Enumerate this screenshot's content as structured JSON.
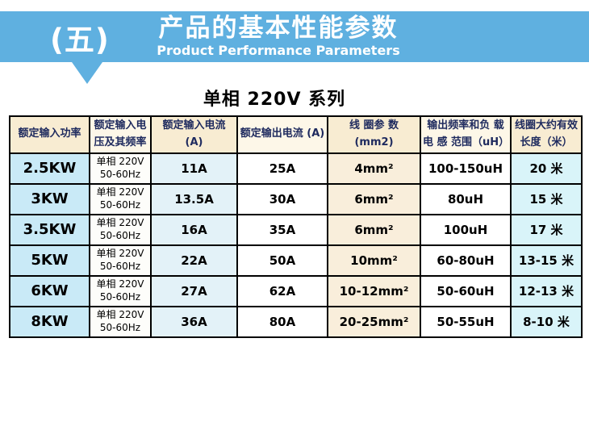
{
  "banner": {
    "section_number": "(五)",
    "title": "产品的基本性能参数",
    "subtitle": "Product Performance Parameters"
  },
  "section": {
    "table_title": "单相 220V 系列"
  },
  "table": {
    "headers": [
      "额定输入功率",
      "额定输入电压及其频率",
      "额定输入电流 (A)",
      "额定输出电流 (A)",
      "线 圈参 数 (mm2)",
      "输出频率和负 载电 感 范围（uH）",
      "线圈大约有效长度（米）"
    ],
    "rows": [
      {
        "power": "2.5KW",
        "voltage": "单相 220V 50-60Hz",
        "input_current": "11A",
        "output_current": "25A",
        "coil_size": "4mm²",
        "inductance": "100-150uH",
        "coil_length": "20 米"
      },
      {
        "power": "3KW",
        "voltage": "单相 220V 50-60Hz",
        "input_current": "13.5A",
        "output_current": "30A",
        "coil_size": "6mm²",
        "inductance": "80uH",
        "coil_length": "15 米"
      },
      {
        "power": "3.5KW",
        "voltage": "单相 220V 50-60Hz",
        "input_current": "16A",
        "output_current": "35A",
        "coil_size": "6mm²",
        "inductance": "100uH",
        "coil_length": "17 米"
      },
      {
        "power": "5KW",
        "voltage": "单相 220V 50-60Hz",
        "input_current": "22A",
        "output_current": "50A",
        "coil_size": "10mm²",
        "inductance": "60-80uH",
        "coil_length": "13-15 米"
      },
      {
        "power": "6KW",
        "voltage": "单相 220V 50-60Hz",
        "input_current": "27A",
        "output_current": "62A",
        "coil_size": "10-12mm²",
        "inductance": "50-60uH",
        "coil_length": "12-13 米"
      },
      {
        "power": "8KW",
        "voltage": "单相 220V 50-60Hz",
        "input_current": "36A",
        "output_current": "80A",
        "coil_size": "20-25mm²",
        "inductance": "50-55uH",
        "coil_length": "8-10 米"
      }
    ],
    "colors": {
      "banner_bg": "#5fb0e0",
      "header_bg_odd": "#f8ecd2",
      "header_bg_even": "#fdf7e8",
      "header_text": "#1e2a5e",
      "col_power_bg": "#c9eaf7",
      "col_voltage_bg": "#fdfdfa",
      "col_input_current_bg": "#e3f2f8",
      "col_output_current_bg": "#ffffff",
      "col_coil_bg": "#f9eedb",
      "col_inductance_bg": "#ffffff",
      "col_length_bg": "#d9f4f9",
      "border": "#000000"
    }
  }
}
